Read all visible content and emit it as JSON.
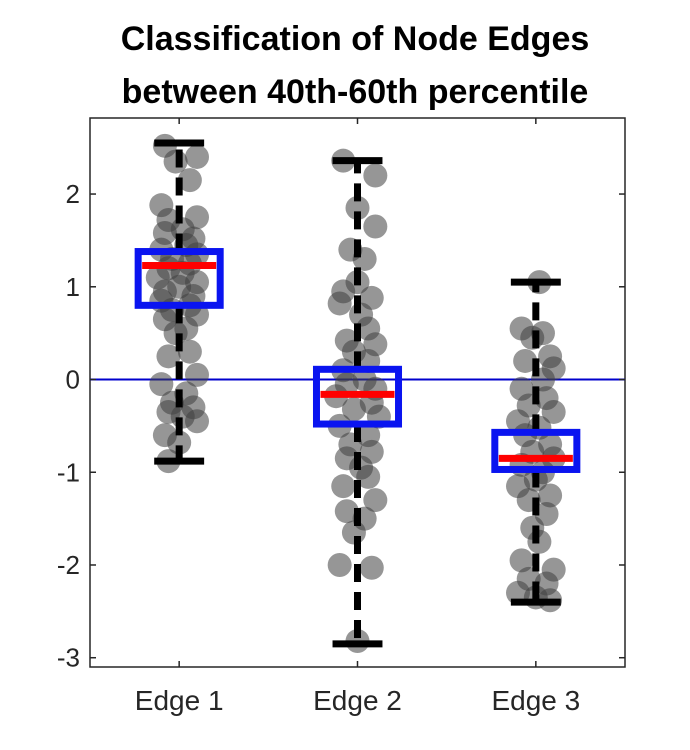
{
  "chart_data": {
    "type": "box",
    "title_lines": [
      "Classification of Node Edges",
      "between 40th-60th percentile"
    ],
    "xlabel": "",
    "ylabel": "",
    "categories": [
      "Edge 1",
      "Edge 2",
      "Edge 3"
    ],
    "ylim": [
      -3.1,
      2.82
    ],
    "yticks": [
      -3,
      -2,
      -1,
      0,
      1,
      2
    ],
    "reference_line": 0,
    "grid": false,
    "colors": {
      "box": "#0a14f0",
      "median": "#ff0000",
      "whisker": "#000000",
      "points": "#404040",
      "reference_line": "#0000cc",
      "axis": "#262626"
    },
    "boxes": [
      {
        "category": "Edge 1",
        "whisker_low": -0.88,
        "q1": 0.8,
        "median": 1.23,
        "q3": 1.38,
        "whisker_high": 2.55
      },
      {
        "category": "Edge 2",
        "whisker_low": -2.85,
        "q1": -0.48,
        "median": -0.16,
        "q3": 0.11,
        "whisker_high": 2.36
      },
      {
        "category": "Edge 3",
        "whisker_low": -2.4,
        "q1": -0.97,
        "median": -0.85,
        "q3": -0.57,
        "whisker_high": 1.05
      }
    ],
    "points": [
      [
        2.52,
        2.4,
        2.35,
        2.15,
        1.88,
        1.75,
        1.72,
        1.62,
        1.58,
        1.52,
        1.45,
        1.4,
        1.35,
        1.3,
        1.25,
        1.2,
        1.15,
        1.1,
        1.05,
        1.0,
        0.95,
        0.9,
        0.85,
        0.8,
        0.75,
        0.7,
        0.65,
        0.55,
        0.5,
        0.3,
        0.25,
        0.05,
        -0.05,
        -0.15,
        -0.25,
        -0.3,
        -0.35,
        -0.4,
        -0.45,
        -0.6,
        -0.68,
        -0.88
      ],
      [
        2.36,
        2.2,
        1.85,
        1.65,
        1.4,
        1.3,
        1.05,
        0.95,
        0.88,
        0.82,
        0.7,
        0.55,
        0.42,
        0.38,
        0.3,
        0.2,
        0.1,
        0.0,
        -0.05,
        -0.1,
        -0.18,
        -0.25,
        -0.32,
        -0.4,
        -0.5,
        -0.6,
        -0.7,
        -0.78,
        -0.85,
        -0.95,
        -1.05,
        -1.15,
        -1.3,
        -1.42,
        -1.5,
        -1.65,
        -2.0,
        -2.03,
        -2.82
      ],
      [
        1.05,
        0.55,
        0.5,
        0.45,
        0.25,
        0.2,
        0.12,
        0.0,
        -0.1,
        -0.2,
        -0.28,
        -0.35,
        -0.45,
        -0.52,
        -0.6,
        -0.7,
        -0.78,
        -0.85,
        -0.92,
        -1.0,
        -1.08,
        -1.15,
        -1.25,
        -1.3,
        -1.45,
        -1.6,
        -1.75,
        -1.95,
        -2.05,
        -2.15,
        -2.2,
        -2.3,
        -2.35,
        -2.38
      ]
    ],
    "point_jitter": [
      [
        -0.08,
        0.1,
        -0.02,
        0.06,
        -0.1,
        0.1,
        -0.06,
        0.02,
        -0.08,
        0.08,
        0.04,
        -0.1,
        0.1,
        -0.04,
        0.06,
        -0.06,
        0.02,
        -0.12,
        0.1,
        0.0,
        -0.08,
        0.08,
        -0.1,
        0.06,
        -0.04,
        0.1,
        -0.08,
        0.04,
        -0.02,
        0.06,
        -0.06,
        0.1,
        -0.1,
        0.04,
        -0.04,
        0.08,
        -0.06,
        0.02,
        0.1,
        -0.08,
        0.0,
        -0.06
      ],
      [
        -0.08,
        0.1,
        0.0,
        0.1,
        -0.04,
        0.04,
        0.0,
        -0.08,
        0.08,
        -0.1,
        0.02,
        0.06,
        -0.06,
        0.1,
        -0.02,
        0.06,
        -0.08,
        0.04,
        -0.06,
        0.1,
        -0.12,
        0.08,
        -0.02,
        0.12,
        -0.1,
        0.06,
        -0.04,
        0.08,
        -0.06,
        0.02,
        0.06,
        -0.08,
        0.1,
        -0.06,
        0.04,
        -0.02,
        -0.1,
        0.08,
        0.0
      ],
      [
        0.02,
        -0.08,
        0.04,
        -0.02,
        0.08,
        -0.06,
        0.1,
        0.04,
        -0.08,
        0.06,
        -0.04,
        0.1,
        -0.1,
        0.02,
        -0.06,
        0.08,
        -0.02,
        0.1,
        -0.08,
        0.04,
        0.0,
        -0.1,
        0.08,
        -0.04,
        0.06,
        -0.02,
        0.02,
        -0.08,
        0.1,
        -0.04,
        0.06,
        -0.1,
        0.0,
        0.08
      ]
    ]
  }
}
